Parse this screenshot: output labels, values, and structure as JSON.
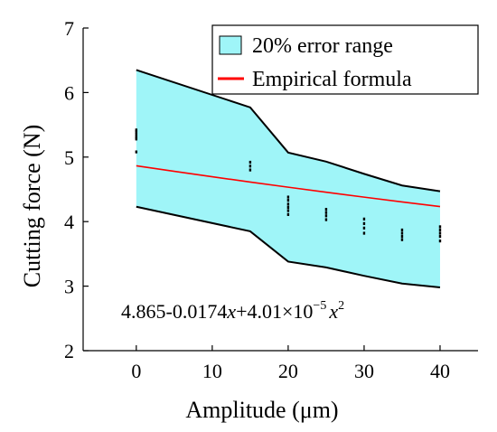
{
  "chart_data": {
    "type": "area",
    "xlabel": "Amplitude (μm)",
    "ylabel": "Cutting force (N)",
    "xlim": [
      -7,
      45
    ],
    "ylim": [
      2,
      7
    ],
    "x_ticks": [
      "0",
      "10",
      "20",
      "30",
      "40"
    ],
    "y_ticks": [
      "2",
      "3",
      "4",
      "5",
      "6",
      "7"
    ],
    "grid": false,
    "legend_position": "top-right",
    "legend": {
      "band_label": "20% error range",
      "line_label": "Empirical formula"
    },
    "annotation": {
      "formula_main": "4.865-0.0174",
      "formula_x1": "x",
      "formula_mid": "+4.01×10",
      "formula_exp": "−5",
      "formula_x2": "x",
      "formula_sq": "2"
    },
    "band": {
      "x": [
        0,
        15,
        20,
        25,
        30,
        35,
        40
      ],
      "upper": [
        6.35,
        5.77,
        5.07,
        4.93,
        4.74,
        4.56,
        4.47
      ],
      "lower": [
        4.23,
        3.85,
        3.38,
        3.29,
        3.16,
        3.04,
        2.98
      ]
    },
    "formula_line": {
      "x": [
        0,
        5,
        10,
        15,
        20,
        25,
        30,
        35,
        40
      ],
      "y": [
        4.865,
        4.779,
        4.695,
        4.613,
        4.533,
        4.455,
        4.379,
        4.305,
        4.233
      ]
    },
    "measurements": [
      {
        "x": 0,
        "values": [
          5.42,
          5.39,
          5.35,
          5.31,
          5.28,
          5.08
        ]
      },
      {
        "x": 15,
        "values": [
          4.92,
          4.86,
          4.8
        ]
      },
      {
        "x": 20,
        "values": [
          4.38,
          4.33,
          4.27,
          4.22,
          4.17,
          4.11
        ]
      },
      {
        "x": 25,
        "values": [
          4.19,
          4.14,
          4.09,
          4.03
        ]
      },
      {
        "x": 30,
        "values": [
          4.04,
          3.97,
          3.9,
          3.82
        ]
      },
      {
        "x": 35,
        "values": [
          3.87,
          3.82,
          3.77,
          3.72
        ]
      },
      {
        "x": 40,
        "values": [
          3.92,
          3.87,
          3.82,
          3.77,
          3.7
        ]
      }
    ],
    "colors": {
      "band_fill": "#9ff5f8",
      "band_edge": "#000000",
      "formula_line": "#ff0000",
      "markers": "#000000",
      "axes": "#000000"
    }
  }
}
